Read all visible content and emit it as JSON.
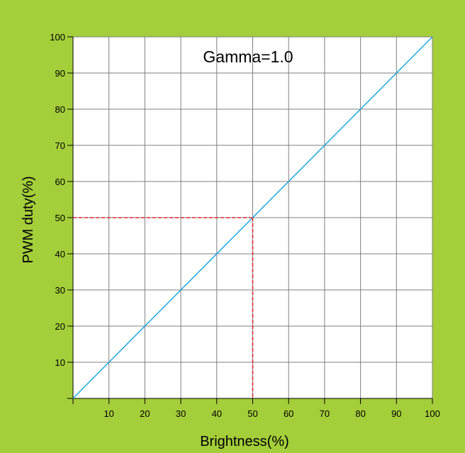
{
  "colors": {
    "background": "#A4CE3A",
    "plot_bg": "#FFFFFF",
    "grid": "#7F7F7F",
    "line": "#1FA7DE",
    "guide": "#E8242D"
  },
  "chart_data": {
    "type": "line",
    "annotation": "Gamma=1.0",
    "xlabel": "Brightness(%)",
    "ylabel": "PWM duty(%)",
    "xlim": [
      0,
      100
    ],
    "ylim": [
      0,
      100
    ],
    "x_ticks": [
      "10",
      "20",
      "30",
      "40",
      "50",
      "60",
      "70",
      "80",
      "90",
      "100"
    ],
    "y_ticks": [
      "10",
      "20",
      "30",
      "40",
      "50",
      "60",
      "70",
      "80",
      "90",
      "100"
    ],
    "grid": true,
    "series": [
      {
        "x": [
          0,
          100
        ],
        "y": [
          0,
          100
        ]
      }
    ],
    "guide_point": {
      "x": 50,
      "y": 50
    }
  }
}
